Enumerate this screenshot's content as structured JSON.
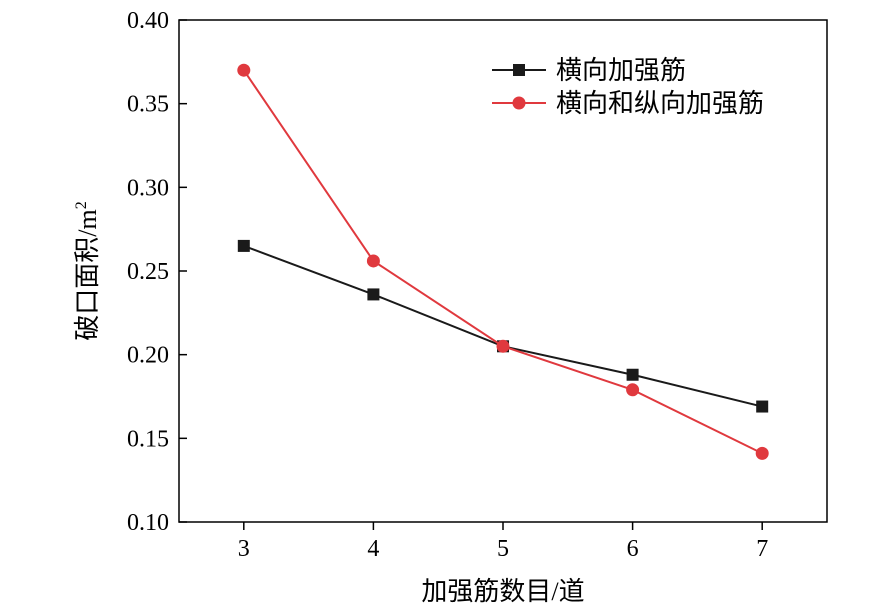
{
  "chart_data": {
    "type": "line",
    "title": "",
    "xlabel": "加强筋数目/道",
    "ylabel_main": "破口面积/m",
    "ylabel_sup": "2",
    "x": [
      3,
      4,
      5,
      6,
      7
    ],
    "x_ticks": [
      "3",
      "4",
      "5",
      "6",
      "7"
    ],
    "xlim": [
      2.5,
      7.5
    ],
    "ylim": [
      0.1,
      0.4
    ],
    "y_ticks": [
      "0.10",
      "0.15",
      "0.20",
      "0.25",
      "0.30",
      "0.35",
      "0.40"
    ],
    "grid": false,
    "legend_position": "top-right",
    "series": [
      {
        "name": "横向加强筋",
        "color": "#1a1a1a",
        "marker": "square",
        "values": [
          0.265,
          0.236,
          0.205,
          0.188,
          0.169
        ]
      },
      {
        "name": "横向和纵向加强筋",
        "color": "#e0393e",
        "marker": "circle",
        "values": [
          0.37,
          0.256,
          0.205,
          0.179,
          0.141
        ]
      }
    ]
  }
}
